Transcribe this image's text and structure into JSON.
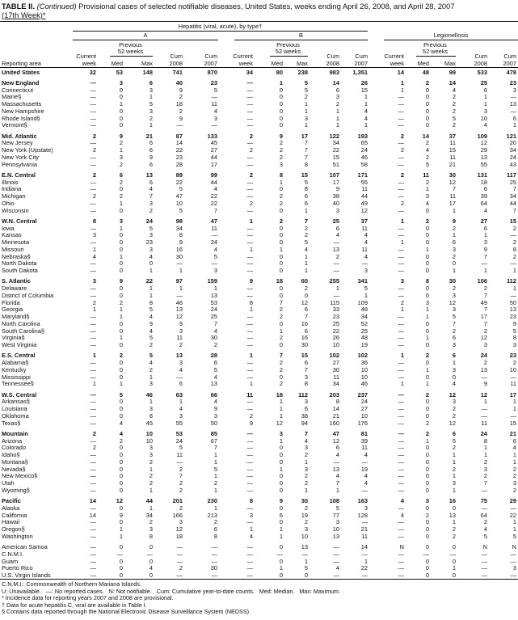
{
  "title": {
    "prefix": "TABLE II. ",
    "italic": "(Continued)",
    "text": " Provisional cases of selected notifiable diseases, United States, weeks ending April 26, 2008, and April 28, 2007",
    "line2": "(17th Week)*"
  },
  "header": {
    "group1": "Hepatitis (viral, acute), by type†",
    "subA": "A",
    "subB": "B",
    "group2": "Legionellosis",
    "previous": "Previous",
    "weeks52": "52 weeks",
    "current": "Current",
    "week": "week",
    "med": "Med",
    "max": "Max",
    "cum": "Cum",
    "y2008": "2008",
    "y2007": "2007",
    "reporting_area": "Reporting area"
  },
  "rows": [
    {
      "area": "United States",
      "bold": true,
      "gap": false,
      "v": [
        "32",
        "53",
        "148",
        "741",
        "870",
        "34",
        "80",
        "238",
        "983",
        "1,351",
        "14",
        "48",
        "99",
        "533",
        "478"
      ]
    },
    {
      "area": "New England",
      "bold": true,
      "gap": true,
      "v": [
        "—",
        "3",
        "6",
        "40",
        "23",
        "—",
        "1",
        "5",
        "14",
        "26",
        "1",
        "2",
        "14",
        "25",
        "23"
      ]
    },
    {
      "area": "Connecticut",
      "v": [
        "—",
        "0",
        "3",
        "9",
        "5",
        "—",
        "0",
        "5",
        "6",
        "15",
        "1",
        "0",
        "4",
        "6",
        "3"
      ]
    },
    {
      "area": "Maine§",
      "v": [
        "—",
        "0",
        "1",
        "2",
        "—",
        "—",
        "0",
        "2",
        "3",
        "1",
        "—",
        "0",
        "2",
        "1",
        "—"
      ]
    },
    {
      "area": "Massachusetts",
      "v": [
        "—",
        "1",
        "5",
        "18",
        "11",
        "—",
        "0",
        "1",
        "2",
        "1",
        "—",
        "0",
        "2",
        "1",
        "13"
      ]
    },
    {
      "area": "New Hampshire",
      "v": [
        "—",
        "0",
        "3",
        "2",
        "4",
        "—",
        "0",
        "1",
        "1",
        "4",
        "—",
        "0",
        "2",
        "3",
        "—"
      ]
    },
    {
      "area": "Rhode Island§",
      "v": [
        "—",
        "0",
        "2",
        "9",
        "3",
        "—",
        "0",
        "3",
        "1",
        "4",
        "—",
        "0",
        "5",
        "10",
        "6"
      ]
    },
    {
      "area": "Vermont§",
      "v": [
        "—",
        "0",
        "1",
        "—",
        "—",
        "—",
        "0",
        "1",
        "1",
        "1",
        "—",
        "0",
        "2",
        "4",
        "1"
      ]
    },
    {
      "area": "Mid. Atlantic",
      "bold": true,
      "gap": true,
      "v": [
        "2",
        "9",
        "21",
        "87",
        "133",
        "2",
        "9",
        "17",
        "122",
        "193",
        "2",
        "14",
        "37",
        "109",
        "121"
      ]
    },
    {
      "area": "New Jersey",
      "v": [
        "—",
        "2",
        "6",
        "14",
        "45",
        "—",
        "2",
        "7",
        "34",
        "65",
        "—",
        "2",
        "11",
        "12",
        "20"
      ]
    },
    {
      "area": "New York (Upstate)",
      "v": [
        "2",
        "1",
        "6",
        "22",
        "27",
        "2",
        "2",
        "7",
        "22",
        "24",
        "2",
        "4",
        "15",
        "29",
        "34"
      ]
    },
    {
      "area": "New York City",
      "v": [
        "—",
        "3",
        "9",
        "23",
        "44",
        "—",
        "2",
        "7",
        "15",
        "46",
        "—",
        "2",
        "11",
        "13",
        "24"
      ]
    },
    {
      "area": "Pennsylvania",
      "v": [
        "—",
        "2",
        "6",
        "28",
        "17",
        "—",
        "3",
        "8",
        "51",
        "58",
        "—",
        "5",
        "21",
        "55",
        "43"
      ]
    },
    {
      "area": "E.N. Central",
      "bold": true,
      "gap": true,
      "v": [
        "2",
        "6",
        "13",
        "89",
        "99",
        "2",
        "8",
        "15",
        "107",
        "171",
        "2",
        "11",
        "30",
        "131",
        "117"
      ]
    },
    {
      "area": "Illinois",
      "v": [
        "—",
        "2",
        "6",
        "22",
        "44",
        "—",
        "1",
        "5",
        "17",
        "55",
        "—",
        "2",
        "12",
        "18",
        "25"
      ]
    },
    {
      "area": "Indiana",
      "v": [
        "—",
        "0",
        "4",
        "5",
        "4",
        "—",
        "0",
        "8",
        "9",
        "11",
        "—",
        "1",
        "7",
        "6",
        "7"
      ]
    },
    {
      "area": "Michigan",
      "v": [
        "2",
        "2",
        "7",
        "47",
        "22",
        "—",
        "2",
        "6",
        "38",
        "44",
        "—",
        "3",
        "11",
        "39",
        "34"
      ]
    },
    {
      "area": "Ohio",
      "v": [
        "—",
        "1",
        "3",
        "10",
        "22",
        "2",
        "2",
        "6",
        "40",
        "49",
        "2",
        "4",
        "17",
        "64",
        "44"
      ]
    },
    {
      "area": "Wisconsin",
      "v": [
        "—",
        "0",
        "2",
        "5",
        "7",
        "—",
        "0",
        "1",
        "3",
        "12",
        "—",
        "0",
        "1",
        "4",
        "7"
      ]
    },
    {
      "area": "W.N. Central",
      "bold": true,
      "gap": true,
      "v": [
        "8",
        "3",
        "24",
        "98",
        "47",
        "1",
        "2",
        "7",
        "25",
        "37",
        "1",
        "2",
        "9",
        "27",
        "15"
      ]
    },
    {
      "area": "Iowa",
      "v": [
        "—",
        "1",
        "5",
        "34",
        "11",
        "—",
        "0",
        "2",
        "6",
        "11",
        "—",
        "0",
        "2",
        "6",
        "2"
      ]
    },
    {
      "area": "Kansas",
      "v": [
        "3",
        "0",
        "3",
        "8",
        "—",
        "—",
        "0",
        "2",
        "4",
        "4",
        "—",
        "0",
        "1",
        "1",
        "—"
      ]
    },
    {
      "area": "Minnesota",
      "v": [
        "—",
        "0",
        "23",
        "9",
        "24",
        "—",
        "0",
        "5",
        "—",
        "4",
        "1",
        "0",
        "6",
        "3",
        "2"
      ]
    },
    {
      "area": "Missouri",
      "v": [
        "1",
        "0",
        "3",
        "16",
        "4",
        "1",
        "1",
        "4",
        "13",
        "11",
        "—",
        "1",
        "3",
        "9",
        "8"
      ]
    },
    {
      "area": "Nebraska§",
      "v": [
        "4",
        "1",
        "4",
        "30",
        "5",
        "—",
        "0",
        "1",
        "2",
        "4",
        "—",
        "0",
        "2",
        "7",
        "2"
      ]
    },
    {
      "area": "North Dakota",
      "v": [
        "—",
        "0",
        "0",
        "—",
        "—",
        "—",
        "0",
        "1",
        "—",
        "—",
        "—",
        "0",
        "0",
        "—",
        "—"
      ]
    },
    {
      "area": "South Dakota",
      "v": [
        "—",
        "0",
        "1",
        "1",
        "3",
        "—",
        "0",
        "1",
        "—",
        "3",
        "—",
        "0",
        "1",
        "1",
        "1"
      ]
    },
    {
      "area": "S. Atlantic",
      "bold": true,
      "gap": true,
      "v": [
        "3",
        "9",
        "22",
        "97",
        "159",
        "9",
        "18",
        "60",
        "255",
        "341",
        "3",
        "8",
        "30",
        "106",
        "112"
      ]
    },
    {
      "area": "Delaware",
      "v": [
        "—",
        "0",
        "1",
        "1",
        "1",
        "—",
        "0",
        "2",
        "1",
        "5",
        "—",
        "0",
        "2",
        "2",
        "1"
      ]
    },
    {
      "area": "District of Columbia",
      "v": [
        "—",
        "0",
        "1",
        "—",
        "13",
        "—",
        "0",
        "0",
        "—",
        "1",
        "—",
        "0",
        "3",
        "7",
        "—"
      ]
    },
    {
      "area": "Florida",
      "v": [
        "2",
        "2",
        "8",
        "46",
        "53",
        "8",
        "7",
        "12",
        "115",
        "109",
        "2",
        "3",
        "12",
        "49",
        "50"
      ]
    },
    {
      "area": "Georgia",
      "v": [
        "1",
        "1",
        "5",
        "13",
        "24",
        "1",
        "2",
        "6",
        "33",
        "48",
        "1",
        "1",
        "3",
        "7",
        "13"
      ]
    },
    {
      "area": "Maryland§",
      "v": [
        "—",
        "1",
        "4",
        "12",
        "25",
        "—",
        "2",
        "7",
        "23",
        "34",
        "—",
        "1",
        "5",
        "17",
        "23"
      ]
    },
    {
      "area": "North Carolina",
      "v": [
        "—",
        "0",
        "9",
        "9",
        "7",
        "—",
        "0",
        "16",
        "25",
        "52",
        "—",
        "0",
        "7",
        "7",
        "9"
      ]
    },
    {
      "area": "South Carolina§",
      "v": [
        "—",
        "0",
        "4",
        "3",
        "4",
        "—",
        "1",
        "6",
        "22",
        "25",
        "—",
        "0",
        "2",
        "2",
        "5"
      ]
    },
    {
      "area": "Virginia§",
      "v": [
        "—",
        "1",
        "5",
        "11",
        "30",
        "—",
        "2",
        "16",
        "26",
        "48",
        "—",
        "1",
        "6",
        "12",
        "8"
      ]
    },
    {
      "area": "West Virginia",
      "v": [
        "—",
        "0",
        "2",
        "2",
        "2",
        "—",
        "0",
        "30",
        "10",
        "19",
        "—",
        "0",
        "3",
        "3",
        "3"
      ]
    },
    {
      "area": "E.S. Central",
      "bold": true,
      "gap": true,
      "v": [
        "1",
        "2",
        "5",
        "13",
        "28",
        "1",
        "7",
        "15",
        "102",
        "102",
        "1",
        "2",
        "6",
        "24",
        "23"
      ]
    },
    {
      "area": "Alabama§",
      "v": [
        "—",
        "0",
        "4",
        "3",
        "6",
        "—",
        "2",
        "6",
        "27",
        "36",
        "—",
        "0",
        "1",
        "2",
        "2"
      ]
    },
    {
      "area": "Kentucky",
      "v": [
        "—",
        "0",
        "2",
        "4",
        "5",
        "—",
        "2",
        "7",
        "30",
        "10",
        "—",
        "1",
        "3",
        "13",
        "10"
      ]
    },
    {
      "area": "Mississippi",
      "v": [
        "—",
        "0",
        "1",
        "—",
        "4",
        "—",
        "0",
        "3",
        "11",
        "10",
        "—",
        "0",
        "0",
        "—",
        "—"
      ]
    },
    {
      "area": "Tennessee§",
      "v": [
        "1",
        "1",
        "3",
        "6",
        "13",
        "1",
        "2",
        "8",
        "34",
        "46",
        "1",
        "1",
        "4",
        "9",
        "11"
      ]
    },
    {
      "area": "W.S. Central",
      "bold": true,
      "gap": true,
      "v": [
        "—",
        "5",
        "46",
        "63",
        "66",
        "11",
        "18",
        "112",
        "203",
        "237",
        "—",
        "2",
        "12",
        "12",
        "17"
      ]
    },
    {
      "area": "Arkansas§",
      "v": [
        "—",
        "0",
        "1",
        "1",
        "4",
        "—",
        "1",
        "3",
        "8",
        "24",
        "—",
        "0",
        "3",
        "1",
        "1"
      ]
    },
    {
      "area": "Louisiana",
      "v": [
        "—",
        "0",
        "3",
        "4",
        "9",
        "—",
        "1",
        "6",
        "14",
        "27",
        "—",
        "0",
        "2",
        "—",
        "1"
      ]
    },
    {
      "area": "Oklahoma",
      "v": [
        "—",
        "0",
        "8",
        "3",
        "3",
        "2",
        "1",
        "38",
        "21",
        "10",
        "—",
        "0",
        "2",
        "—",
        "—"
      ]
    },
    {
      "area": "Texas§",
      "v": [
        "—",
        "4",
        "45",
        "55",
        "50",
        "9",
        "12",
        "94",
        "160",
        "176",
        "—",
        "2",
        "12",
        "11",
        "15"
      ]
    },
    {
      "area": "Mountain",
      "bold": true,
      "gap": true,
      "v": [
        "2",
        "4",
        "10",
        "53",
        "85",
        "—",
        "3",
        "7",
        "47",
        "81",
        "—",
        "2",
        "6",
        "24",
        "21"
      ]
    },
    {
      "area": "Arizona",
      "v": [
        "—",
        "2",
        "10",
        "24",
        "67",
        "—",
        "1",
        "4",
        "12",
        "39",
        "—",
        "1",
        "5",
        "8",
        "6"
      ]
    },
    {
      "area": "Colorado",
      "v": [
        "2",
        "0",
        "3",
        "5",
        "7",
        "—",
        "0",
        "3",
        "6",
        "11",
        "—",
        "0",
        "2",
        "1",
        "4"
      ]
    },
    {
      "area": "Idaho§",
      "v": [
        "—",
        "0",
        "3",
        "11",
        "1",
        "—",
        "0",
        "2",
        "4",
        "4",
        "—",
        "0",
        "1",
        "1",
        "1"
      ]
    },
    {
      "area": "Montana§",
      "v": [
        "—",
        "0",
        "2",
        "—",
        "1",
        "—",
        "0",
        "1",
        "—",
        "—",
        "—",
        "0",
        "1",
        "2",
        "1"
      ]
    },
    {
      "area": "Nevada§",
      "v": [
        "—",
        "0",
        "1",
        "2",
        "5",
        "—",
        "1",
        "3",
        "13",
        "19",
        "—",
        "0",
        "2",
        "3",
        "2"
      ]
    },
    {
      "area": "New Mexico§",
      "v": [
        "—",
        "0",
        "2",
        "7",
        "1",
        "—",
        "0",
        "2",
        "4",
        "4",
        "—",
        "0",
        "1",
        "2",
        "2"
      ]
    },
    {
      "area": "Utah",
      "v": [
        "—",
        "0",
        "2",
        "2",
        "2",
        "—",
        "0",
        "2",
        "7",
        "4",
        "—",
        "0",
        "3",
        "7",
        "3"
      ]
    },
    {
      "area": "Wyoming§",
      "v": [
        "—",
        "0",
        "1",
        "2",
        "1",
        "—",
        "0",
        "1",
        "1",
        "—",
        "—",
        "0",
        "1",
        "—",
        "2"
      ]
    },
    {
      "area": "Pacific",
      "bold": true,
      "gap": true,
      "v": [
        "14",
        "12",
        "44",
        "201",
        "230",
        "8",
        "9",
        "30",
        "108",
        "163",
        "4",
        "3",
        "16",
        "75",
        "29"
      ]
    },
    {
      "area": "Alaska",
      "v": [
        "—",
        "0",
        "1",
        "2",
        "1",
        "—",
        "0",
        "2",
        "5",
        "3",
        "—",
        "0",
        "0",
        "—",
        "—"
      ]
    },
    {
      "area": "California",
      "v": [
        "14",
        "9",
        "34",
        "166",
        "213",
        "3",
        "6",
        "19",
        "77",
        "128",
        "4",
        "2",
        "13",
        "64",
        "22"
      ]
    },
    {
      "area": "Hawaii",
      "v": [
        "—",
        "0",
        "2",
        "3",
        "2",
        "—",
        "0",
        "2",
        "3",
        "—",
        "—",
        "0",
        "1",
        "2",
        "1"
      ]
    },
    {
      "area": "Oregon§",
      "v": [
        "—",
        "1",
        "3",
        "12",
        "6",
        "1",
        "1",
        "3",
        "10",
        "21",
        "—",
        "0",
        "2",
        "4",
        "1"
      ]
    },
    {
      "area": "Washington",
      "v": [
        "—",
        "1",
        "8",
        "18",
        "8",
        "4",
        "1",
        "10",
        "13",
        "11",
        "—",
        "0",
        "2",
        "5",
        "5"
      ]
    },
    {
      "area": "American Samoa",
      "gap": true,
      "v": [
        "—",
        "0",
        "0",
        "—",
        "—",
        "—",
        "0",
        "13",
        "—",
        "14",
        "N",
        "0",
        "0",
        "N",
        "N"
      ]
    },
    {
      "area": "C.N.M.I.",
      "v": [
        "—",
        "—",
        "—",
        "—",
        "—",
        "—",
        "—",
        "—",
        "—",
        "—",
        "—",
        "—",
        "—",
        "—",
        "—"
      ]
    },
    {
      "area": "Guam",
      "v": [
        "—",
        "0",
        "0",
        "—",
        "—",
        "—",
        "0",
        "1",
        "—",
        "1",
        "—",
        "0",
        "0",
        "—",
        "—"
      ]
    },
    {
      "area": "Puerto Rico",
      "v": [
        "—",
        "0",
        "4",
        "2",
        "30",
        "—",
        "1",
        "5",
        "4",
        "22",
        "—",
        "0",
        "1",
        "—",
        "3"
      ]
    },
    {
      "area": "U.S. Virgin Islands",
      "v": [
        "—",
        "0",
        "0",
        "—",
        "—",
        "—",
        "0",
        "0",
        "—",
        "—",
        "—",
        "0",
        "0",
        "—",
        "—"
      ]
    }
  ],
  "footnotes": {
    "cnmi": "C.N.M.I.: Commonwealth of Northern Mariana Islands.",
    "legend": "U: Unavailable.   —: No reported cases.   N: Not notifiable.   Cum: Cumulative year-to-date counts.   Med: Median.   Max: Maximum.",
    "star": "* Incidence data for reporting years 2007 and 2008 are provisional.",
    "dagger": "† Data for acute hepatitis C, viral are available in Table I.",
    "section": "§ Contains data reported through the National Electronic Disease Surveillance System (NEDSS)."
  }
}
